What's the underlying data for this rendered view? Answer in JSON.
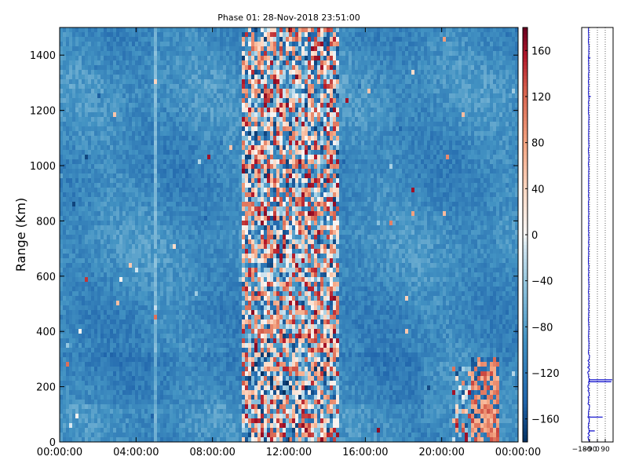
{
  "chart_data": [
    {
      "type": "heatmap",
      "title": "Phase 01: 28-Nov-2018 23:51:00",
      "xlabel": "",
      "ylabel": "Range (Km)",
      "xticks": [
        "00:00:00",
        "04:00:00",
        "08:00:00",
        "12:00:00",
        "16:00:00",
        "20:00:00",
        "00:00:00"
      ],
      "xlim_hours": [
        0,
        24
      ],
      "yticks": [
        0,
        200,
        400,
        600,
        800,
        1000,
        1200,
        1400
      ],
      "ylim": [
        0,
        1500
      ],
      "colorscale": "RdBu_r",
      "clim": [
        -180,
        180
      ],
      "colorbar_ticks": [
        160,
        120,
        80,
        40,
        0,
        -40,
        -80,
        -120,
        -160
      ],
      "colorbar_labels": [
        "160",
        "120",
        "80",
        "40",
        "0",
        "−40",
        "−80",
        "−120",
        "−160"
      ],
      "features": [
        {
          "description": "noisy high-variance band",
          "x_hours": [
            9.5,
            14.7
          ],
          "y_range": [
            0,
            1500
          ]
        },
        {
          "description": "positive values near surface",
          "x_hours": [
            21.5,
            23.0
          ],
          "y_range": [
            0,
            300
          ]
        },
        {
          "description": "light vertical stripe",
          "x_hours": [
            5.0,
            5.15
          ],
          "y_range": [
            0,
            1500
          ]
        }
      ],
      "background_value_approx": -100
    },
    {
      "type": "line",
      "title": "",
      "xlabel": "",
      "ylabel": "",
      "xticks": [
        -180,
        -90,
        0,
        90
      ],
      "xtick_labels": [
        "−180",
        "−90",
        "0",
        "90"
      ],
      "xlim": [
        -180,
        180
      ],
      "ylim": [
        0,
        1500
      ],
      "grid_x": "dotted",
      "color": "#0000cc",
      "profile_description": "mean value vs range; near -100 above 300 km, spikes near 220 km and 90 km"
    }
  ]
}
